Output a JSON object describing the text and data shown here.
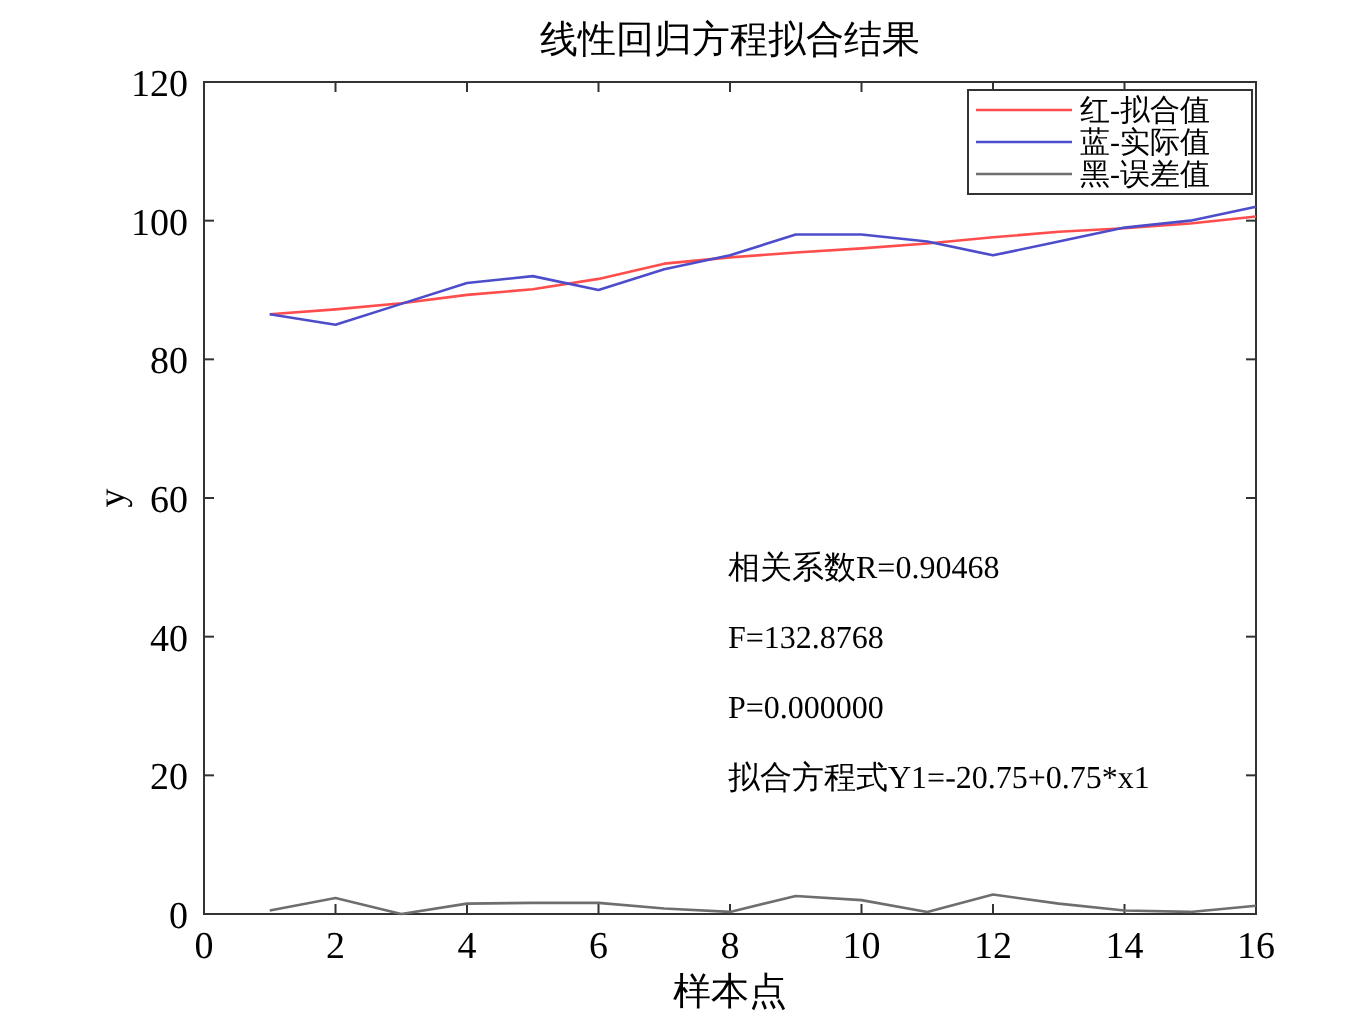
{
  "chart_data": {
    "type": "line",
    "title": "线性回归方程拟合结果",
    "xlabel": "样本点",
    "ylabel": "y",
    "x": [
      1,
      2,
      3,
      4,
      5,
      6,
      7,
      8,
      9,
      10,
      11,
      12,
      13,
      14,
      15,
      16
    ],
    "series": [
      {
        "name": "红-拟合值",
        "color": "#ff4d4d",
        "values": [
          86.5,
          87.2,
          88.1,
          89.3,
          90.1,
          91.6,
          93.8,
          94.7,
          95.4,
          96.0,
          96.7,
          97.6,
          98.4,
          98.9,
          99.6,
          100.6
        ]
      },
      {
        "name": "蓝-实际值",
        "color": "#4d4dcc",
        "values": [
          86.5,
          85,
          88,
          91,
          92,
          90,
          93,
          95,
          98,
          98,
          97,
          95,
          97,
          99,
          100,
          102
        ]
      },
      {
        "name": "黑-误差值",
        "color": "#6e6e6e",
        "values": [
          0.5,
          2.3,
          0,
          1.5,
          1.6,
          1.6,
          0.8,
          0.3,
          2.6,
          2,
          0.3,
          2.8,
          1.5,
          0.5,
          0.3,
          1.2
        ]
      }
    ],
    "xlim": [
      0,
      16
    ],
    "xticks": [
      0,
      2,
      4,
      6,
      8,
      10,
      12,
      14,
      16
    ],
    "ylim": [
      0,
      120
    ],
    "yticks": [
      0,
      20,
      40,
      60,
      80,
      100,
      120
    ],
    "legend": "top right",
    "grid": false,
    "marker": "none",
    "line_style": "solid",
    "annotations": [
      "相关系数R=0.90468",
      "F=132.8768",
      "P=0.000000",
      "拟合方程式Y1=-20.75+0.75*x1"
    ]
  }
}
